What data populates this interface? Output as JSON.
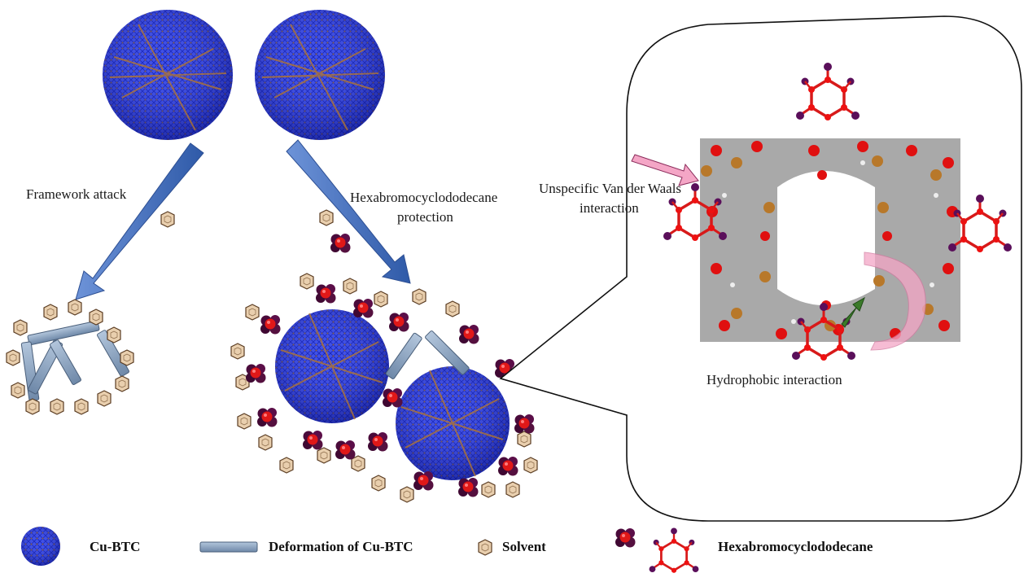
{
  "labels": {
    "framework_attack": "Framework attack",
    "hbcd_protection_line1": "Hexabromocyclododecane",
    "hbcd_protection_line2": "protection",
    "van_der_waals_line1": "Unspecific Van der Waals",
    "van_der_waals_line2": "interaction",
    "hydrophobic": "Hydrophobic interaction"
  },
  "legend": {
    "cu_btc": "Cu-BTC",
    "deformation": "Deformation of Cu-BTC",
    "solvent": "Solvent",
    "hbcd": "Hexabromocyclododecane"
  },
  "colors": {
    "mof_blue": "#1f2fd6",
    "arrow_blue": "#4a78c8",
    "rod": "#8ea6c4",
    "solvent_fill": "#e9cfae",
    "hbcd_dark": "#4a0a3a",
    "hbcd_red": "#e01818",
    "copper": "#b8782a",
    "oxygen": "#e01010",
    "carbon": "#8a8a8a",
    "bromine": "#5a0f5a",
    "pink_arrow": "#f4a6c6",
    "green_arrow": "#3b7a2a"
  },
  "icons": {
    "solvent": "hexagon-icon",
    "hbcd_blob": "molecule-cluster-icon",
    "hbcd_ring": "ring-molecule-icon"
  }
}
